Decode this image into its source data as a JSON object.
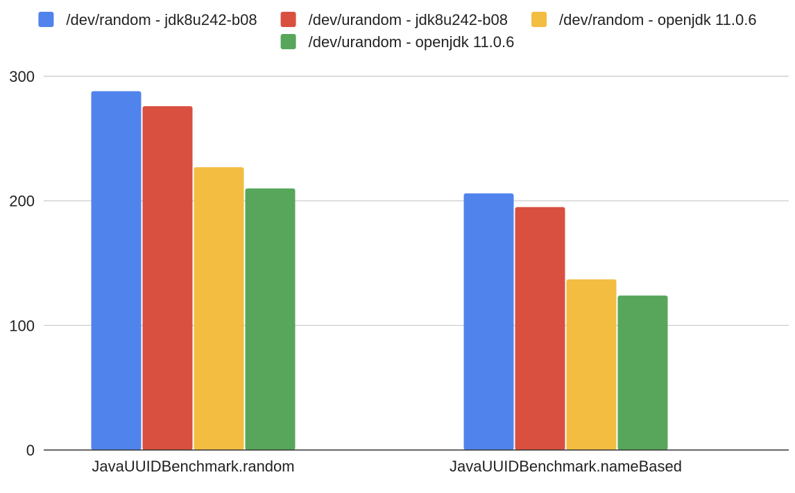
{
  "chart_data": {
    "type": "bar",
    "title": "",
    "xlabel": "",
    "ylabel": "",
    "ylim": [
      0,
      300
    ],
    "yticks": [
      0,
      100,
      200,
      300
    ],
    "grid": true,
    "legend_position": "top",
    "categories": [
      "JavaUUIDBenchmark.random",
      "JavaUUIDBenchmark.nameBased"
    ],
    "series": [
      {
        "name": "/dev/random - jdk8u242-b08",
        "color": "#5084EC",
        "values": [
          288,
          206
        ]
      },
      {
        "name": "/dev/urandom - jdk8u242-b08",
        "color": "#D95040",
        "values": [
          276,
          195
        ]
      },
      {
        "name": "/dev/random - openjdk 11.0.6",
        "color": "#F3BD42",
        "values": [
          227,
          137
        ]
      },
      {
        "name": "/dev/urandom - openjdk 11.0.6",
        "color": "#57A65B",
        "values": [
          210,
          124
        ]
      }
    ]
  }
}
